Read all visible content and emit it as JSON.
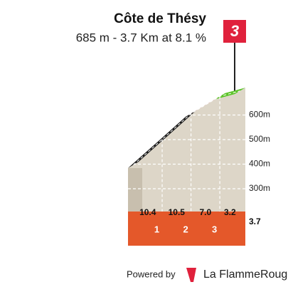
{
  "chart_data": {
    "type": "climb-profile",
    "title": "Côte de Thésy",
    "subtitle": "685 m - 3.7 Km at 8.1 %",
    "category": "3",
    "x": [
      0,
      1,
      2,
      3,
      3.7
    ],
    "elevation": [
      384,
      488,
      593,
      663,
      685
    ],
    "xlim": [
      0,
      3.7
    ],
    "xticks": [
      1,
      2,
      3,
      3.7
    ],
    "ylim": [
      200,
      700
    ],
    "yticks": [
      {
        "value": 300,
        "label": "300m"
      },
      {
        "value": 400,
        "label": "400m"
      },
      {
        "value": 500,
        "label": "500m"
      },
      {
        "value": 600,
        "label": "600m"
      }
    ],
    "gradients": {
      "values": [
        10.4,
        10.5,
        7.0,
        3.2
      ],
      "value_labels": [
        "10.4",
        "10.5",
        "7.0",
        "3.2"
      ],
      "colors": [
        "#1a1a1a",
        "#1a1a1a",
        "#e0213c",
        "#5cc42a"
      ]
    },
    "grid": true
  },
  "footer": {
    "powered_by": "Powered by",
    "brand": "La FlammeRouge"
  }
}
